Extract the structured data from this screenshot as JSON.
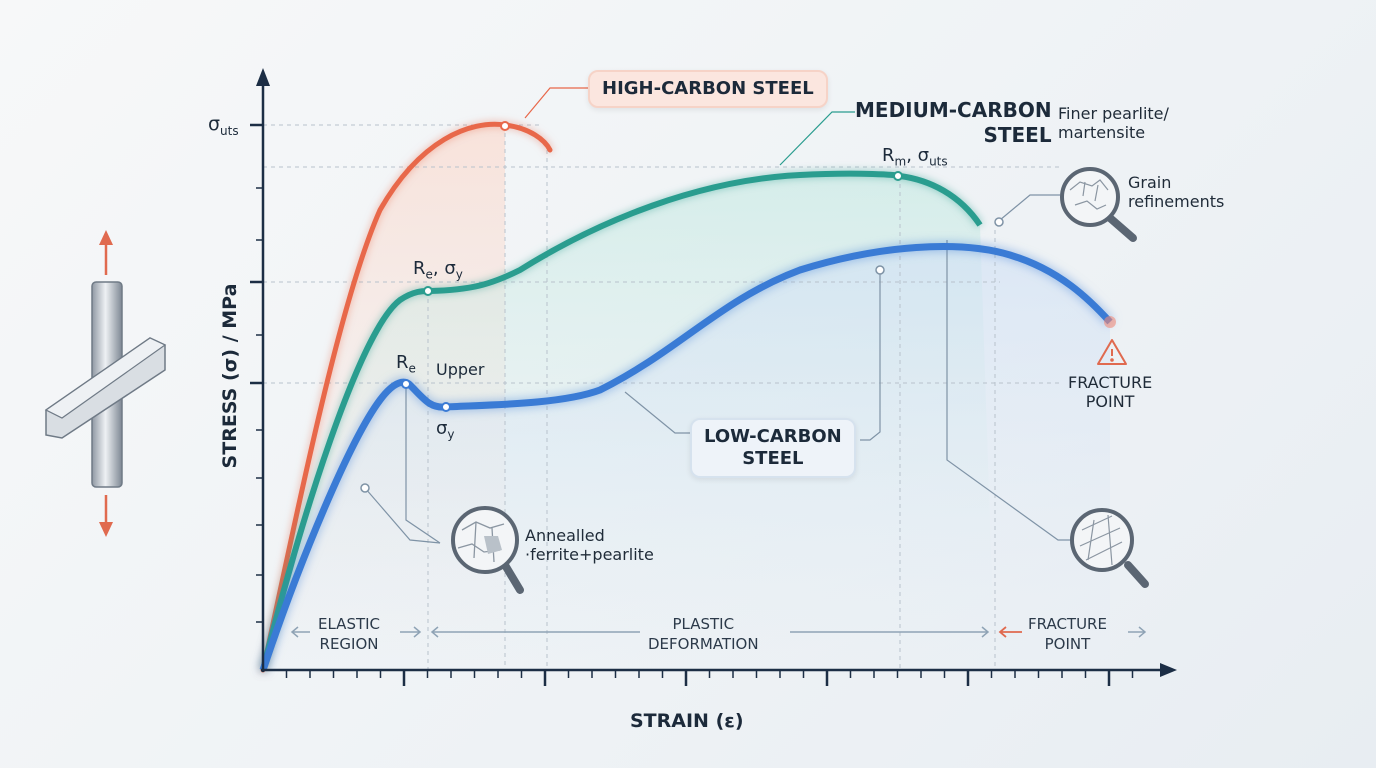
{
  "axes": {
    "y_title": "STRESS (σ) / MPa",
    "x_title": "STRAIN (ε)",
    "y_tick_label_main": "σ",
    "y_tick_label_sub": "uts"
  },
  "curves": {
    "high": {
      "label": "HIGH-CARBON STEEL",
      "color": "#e8684a"
    },
    "medium": {
      "label_line1": "MEDIUM-CARBON",
      "label_line2": "STEEL",
      "color": "#2a9d8f",
      "note_line1": "Finer pearlite/",
      "note_line2": "martensite"
    },
    "low": {
      "label_line1": "LOW-CARBON",
      "label_line2": "STEEL",
      "color": "#3a7bd5"
    }
  },
  "annotations": {
    "re_sy_main": "R",
    "re_sy_sub": "e",
    "re_sy_rest": ", σ",
    "re_sy_sub2": "y",
    "re_main": "R",
    "re_sub": "e",
    "upper": "Upper",
    "sy_main": "σ",
    "sy_sub": "y",
    "rm_main": "R",
    "rm_sub": "m",
    "rm_rest": ", σ",
    "rm_sub2": "uts",
    "grain_line1": "Grain",
    "grain_line2": "refinements",
    "annealed_line1": "Annealled",
    "annealed_line2": "·ferrite+pearlite",
    "fracture_line1": "FRACTURE",
    "fracture_line2": "POINT"
  },
  "regions": {
    "elastic_line1": "ELASTIC",
    "elastic_line2": "REGION",
    "plastic_line1": "PLASTIC",
    "plastic_line2": "DEFORMATION",
    "fracture_line1": "FRACTURE",
    "fracture_line2": "POINT"
  },
  "colors": {
    "axis": "#1c2e45",
    "warning": "#e06a4f",
    "grid": "#b8c2cc"
  }
}
